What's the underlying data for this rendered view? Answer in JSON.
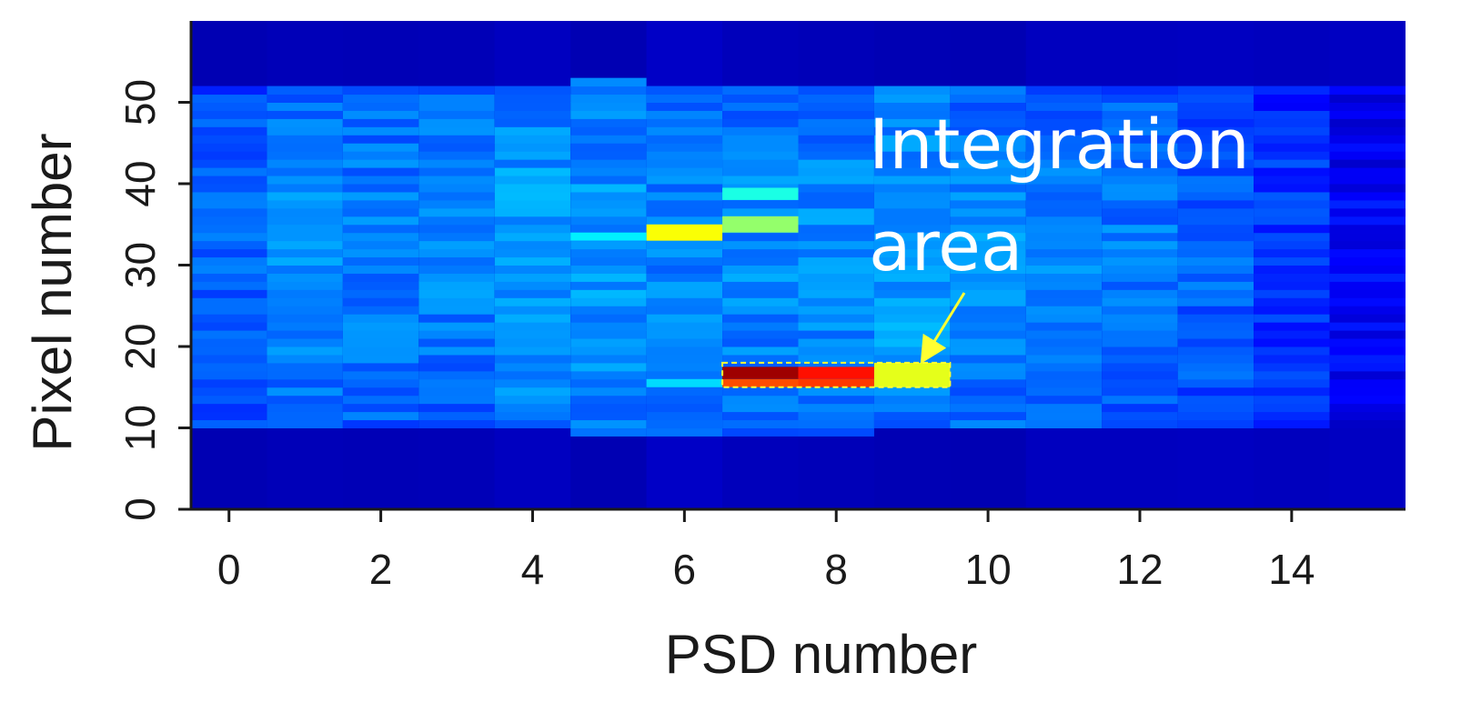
{
  "chart_data": {
    "type": "heatmap",
    "xlabel": "PSD number",
    "ylabel": "Pixel number",
    "x_ticks": [
      "0",
      "2",
      "4",
      "6",
      "8",
      "10",
      "12",
      "14"
    ],
    "y_ticks": [
      "0",
      "10",
      "20",
      "30",
      "40",
      "50"
    ],
    "xlim": [
      -0.5,
      15.5
    ],
    "ylim": [
      0,
      60
    ],
    "colormap": "jet",
    "value_range": [
      0,
      1
    ],
    "background_level": 0.06,
    "detector_band": {
      "pixel_range": [
        10,
        52
      ],
      "base_level": 0.24,
      "psd_levels": [
        0.22,
        0.26,
        0.25,
        0.25,
        0.28,
        0.27,
        0.25,
        0.26,
        0.26,
        0.28,
        0.26,
        0.25,
        0.24,
        0.22,
        0.18,
        0.12
      ],
      "psd_pixel_ranges": [
        [
          10,
          52
        ],
        [
          10,
          52
        ],
        [
          10,
          52
        ],
        [
          10,
          52
        ],
        [
          10,
          52
        ],
        [
          9,
          53
        ],
        [
          9,
          52
        ],
        [
          9,
          52
        ],
        [
          9,
          52
        ],
        [
          10,
          52
        ],
        [
          10,
          52
        ],
        [
          10,
          52
        ],
        [
          10,
          52
        ],
        [
          10,
          52
        ],
        [
          10,
          52
        ],
        [
          10,
          52
        ]
      ]
    },
    "hotspots": [
      {
        "psd": 6,
        "pixel_range": [
          33,
          35
        ],
        "value": 0.62
      },
      {
        "psd": 7,
        "pixel_range": [
          34,
          36
        ],
        "value": 0.52
      },
      {
        "psd": 7,
        "pixel_range": [
          38,
          39.5
        ],
        "value": 0.4
      },
      {
        "psd": 7,
        "pixel_range": [
          15,
          16
        ],
        "value": 0.8
      },
      {
        "psd": 7,
        "pixel_range": [
          16,
          17.5
        ],
        "value": 0.97
      },
      {
        "psd": 8,
        "pixel_range": [
          15,
          16
        ],
        "value": 0.82
      },
      {
        "psd": 8,
        "pixel_range": [
          16,
          17.5
        ],
        "value": 0.86
      },
      {
        "psd": 9,
        "pixel_range": [
          15,
          18
        ],
        "value": 0.6
      },
      {
        "psd": 5,
        "pixel_range": [
          33,
          34
        ],
        "value": 0.36
      },
      {
        "psd": 6,
        "pixel_range": [
          15,
          16
        ],
        "value": 0.34
      }
    ],
    "integration_area": {
      "psd_range": [
        6.5,
        9.5
      ],
      "pixel_range": [
        15,
        18
      ]
    },
    "annotation": {
      "lines": [
        "Integration",
        "area"
      ],
      "arrow_color": "#ffff33",
      "box_color": "#ffff33"
    }
  }
}
